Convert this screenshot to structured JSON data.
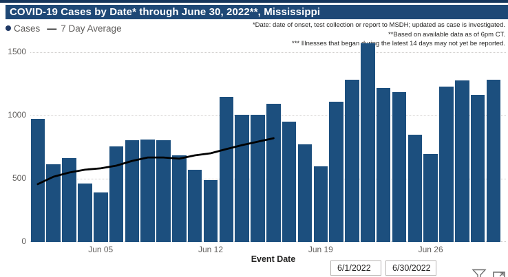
{
  "title": "COVID-19 Cases by Date* through June 30, 2022**, Mississippi",
  "legend": {
    "cases_label": "Cases",
    "avg_label": "7 Day Average"
  },
  "annotations": [
    "*Date: date of onset, test collection or report to MSDH; updated as case is investigated.",
    "**Based on available data as of 6pm CT.",
    "*** Illnesses that began during the latest 14 days may not yet be reported."
  ],
  "colors": {
    "bar": "#1c4f7e",
    "title_bg": "#1e4876",
    "top_strip": "#16365c",
    "legend_dot": "#1f3864",
    "avg_line": "#000000",
    "axis_text": "#605e5c"
  },
  "chart_data": {
    "type": "bar",
    "title": "COVID-19 Cases by Date* through June 30, 2022**, Mississippi",
    "xlabel": "Event Date",
    "ylabel": "",
    "categories": [
      "Jun 01",
      "Jun 02",
      "Jun 03",
      "Jun 04",
      "Jun 05",
      "Jun 06",
      "Jun 07",
      "Jun 08",
      "Jun 09",
      "Jun 10",
      "Jun 11",
      "Jun 12",
      "Jun 13",
      "Jun 14",
      "Jun 15",
      "Jun 16",
      "Jun 17",
      "Jun 18",
      "Jun 19",
      "Jun 20",
      "Jun 21",
      "Jun 22",
      "Jun 23",
      "Jun 24",
      "Jun 25",
      "Jun 26",
      "Jun 27",
      "Jun 28",
      "Jun 29",
      "Jun 30"
    ],
    "series": [
      {
        "name": "Cases",
        "type": "bar",
        "values": [
          975,
          615,
          665,
          460,
          390,
          755,
          805,
          810,
          805,
          685,
          570,
          490,
          1145,
          1005,
          1005,
          1090,
          950,
          770,
          600,
          1110,
          1280,
          1570,
          1215,
          1185,
          850,
          695,
          1230,
          1275,
          1165,
          1285
        ]
      },
      {
        "name": "7 Day Average",
        "type": "line",
        "values": [
          457,
          516,
          549,
          571,
          582,
          603,
          641,
          668,
          668,
          658,
          685,
          701,
          734,
          766,
          793,
          820,
          null,
          null,
          null,
          null,
          null,
          null,
          null,
          null,
          null,
          null,
          null,
          null,
          null,
          null
        ]
      }
    ],
    "x_tick_labels": [
      "Jun 05",
      "Jun 12",
      "Jun 19",
      "Jun 26"
    ],
    "x_tick_days": [
      5,
      12,
      19,
      26
    ],
    "y_ticks": [
      0,
      500,
      1000,
      1500
    ],
    "ylim": [
      0,
      1576
    ],
    "grid": "dotted horizontal"
  },
  "slicer": {
    "start_date": "6/1/2022",
    "end_date": "6/30/2022"
  },
  "icons": {
    "filter": "filter-funnel-icon",
    "focus": "focus-mode-icon"
  }
}
